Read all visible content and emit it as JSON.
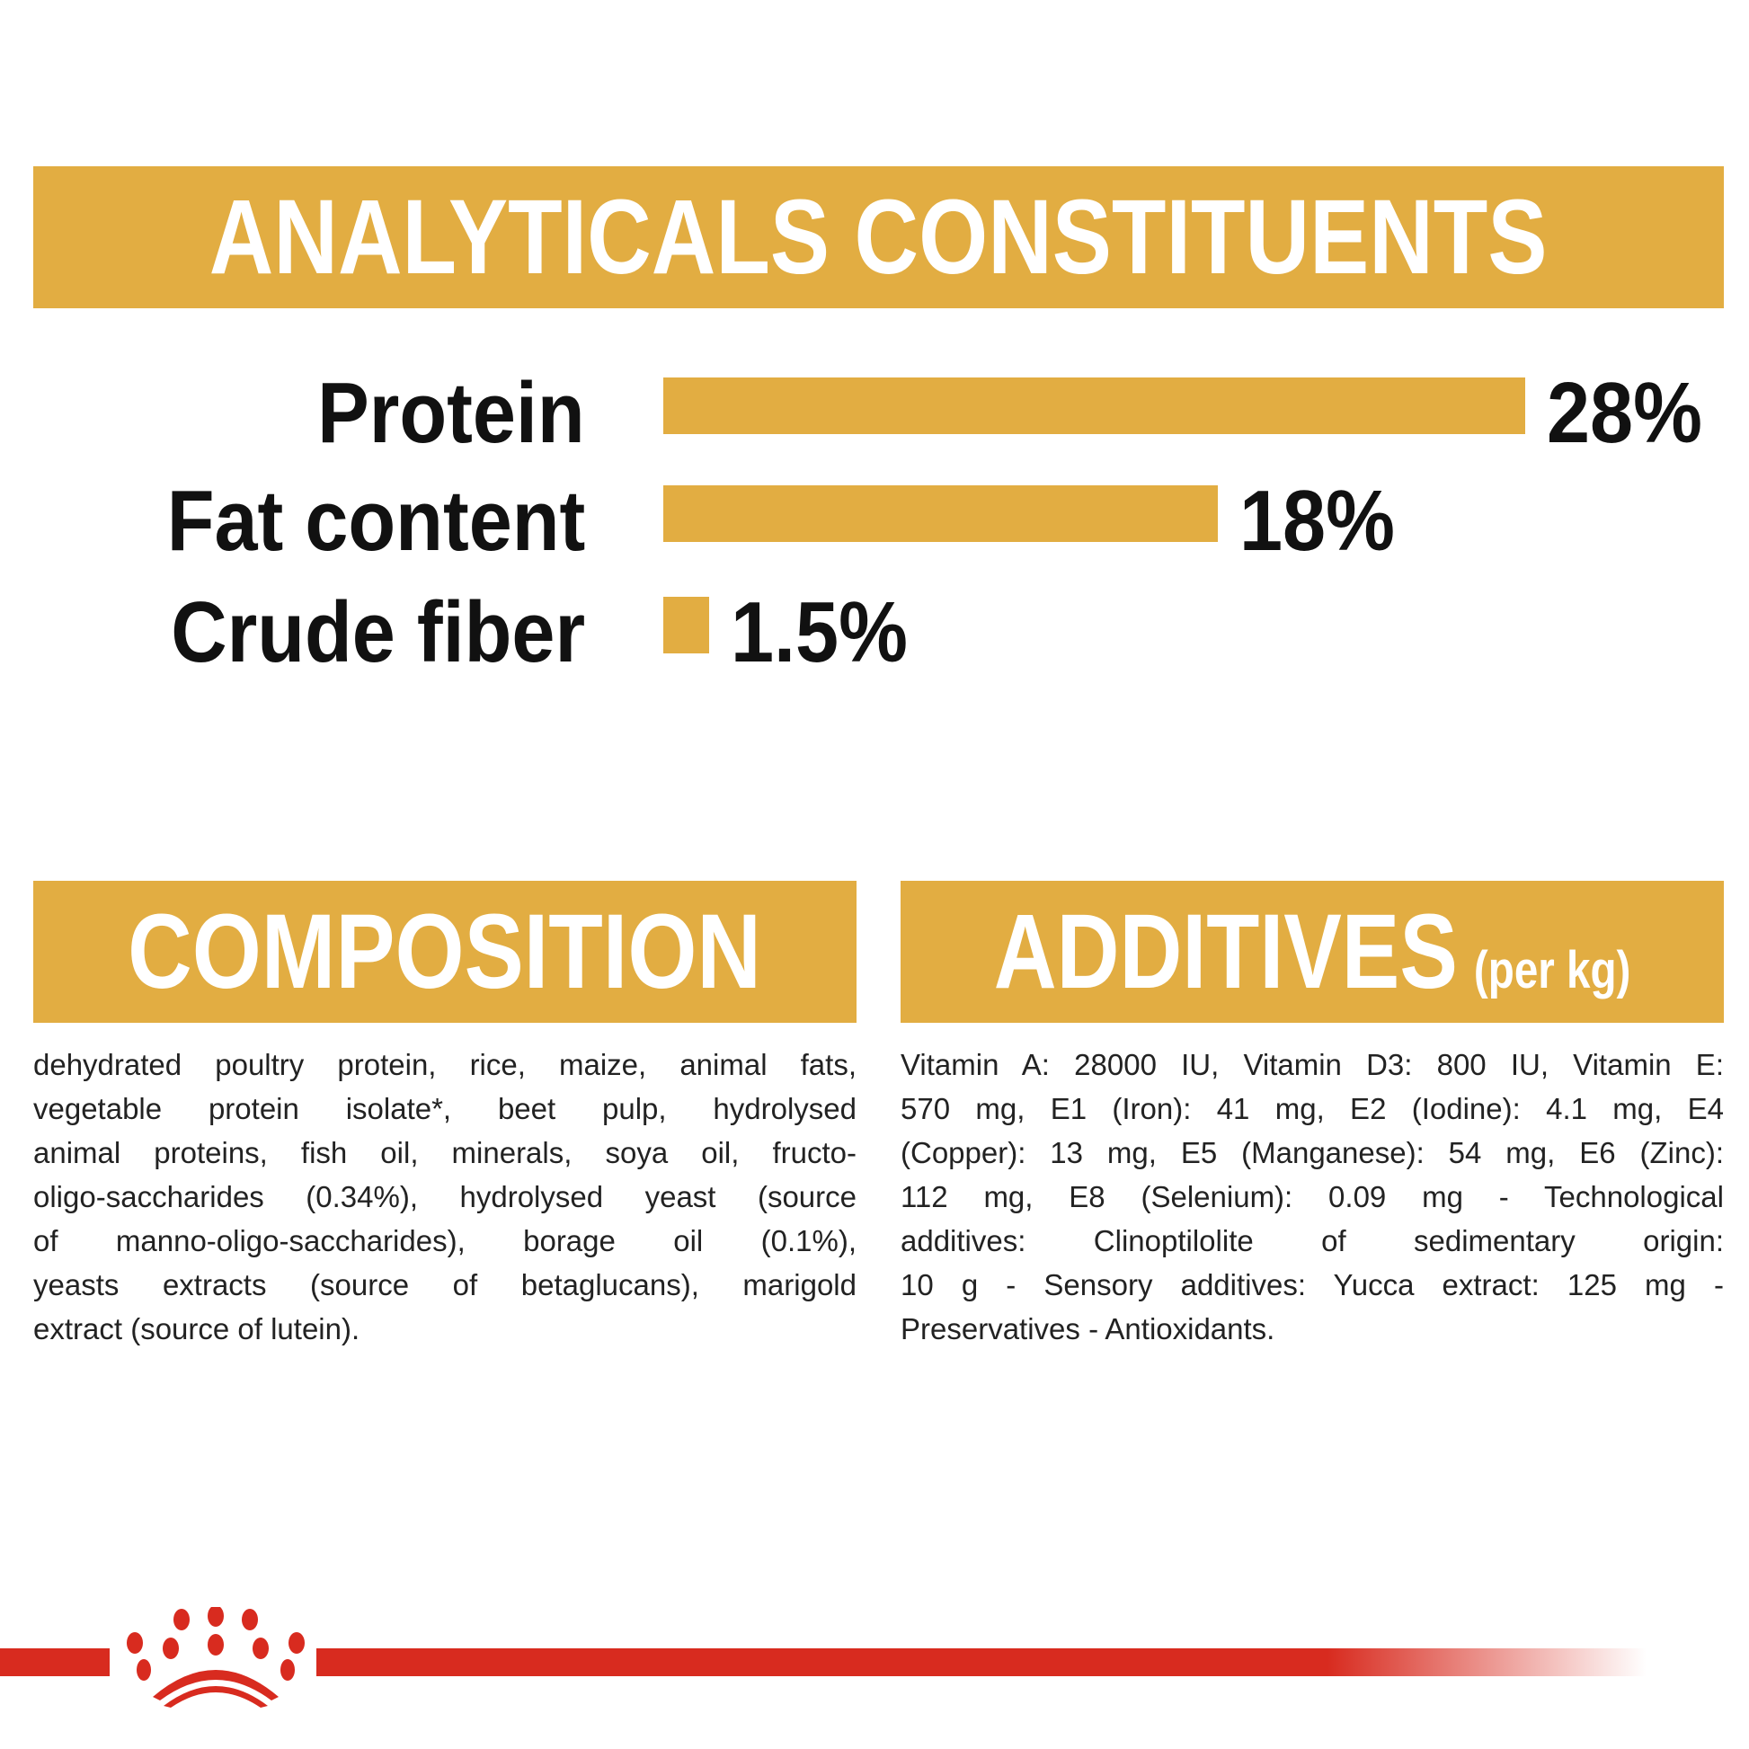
{
  "analytical": {
    "title": "ANALYTICALS CONSTITUENTS",
    "rows": [
      {
        "label": "Protein",
        "value": 28,
        "value_label": "28%"
      },
      {
        "label": "Fat content",
        "value": 18,
        "value_label": "18%"
      },
      {
        "label": "Crude fiber",
        "value": 1.5,
        "value_label": "1.5%"
      }
    ]
  },
  "composition": {
    "title": "COMPOSITION",
    "lines": [
      "dehydrated poultry protein, rice, maize, animal fats,",
      "vegetable protein isolate*, beet pulp, hydrolysed",
      "animal proteins, fish oil, minerals, soya oil, fructo-",
      "oligo-saccharides (0.34%), hydrolysed yeast (source",
      "of manno-oligo-saccharides), borage oil (0.1%),",
      "yeasts extracts (source of betaglucans), marigold",
      "extract (source of lutein)."
    ]
  },
  "additives": {
    "title": "ADDITIVES",
    "subtitle": "(per kg)",
    "lines": [
      "Vitamin A: 28000 IU, Vitamin D3: 800 IU, Vitamin E:",
      "570 mg, E1 (Iron): 41 mg, E2 (Iodine): 4.1 mg, E4",
      "(Copper): 13 mg, E5 (Manganese): 54 mg, E6 (Zinc):",
      "112 mg, E8 (Selenium): 0.09 mg - Technological",
      "additives: Clinoptilolite of sedimentary origin:",
      "10 g - Sensory additives: Yucca extract: 125 mg -",
      "Preservatives - Antioxidants."
    ]
  },
  "colors": {
    "accent": "#e2ad42",
    "brand_red": "#d82b1f"
  },
  "logo": {
    "icon": "royal-canin-crown-logo"
  }
}
